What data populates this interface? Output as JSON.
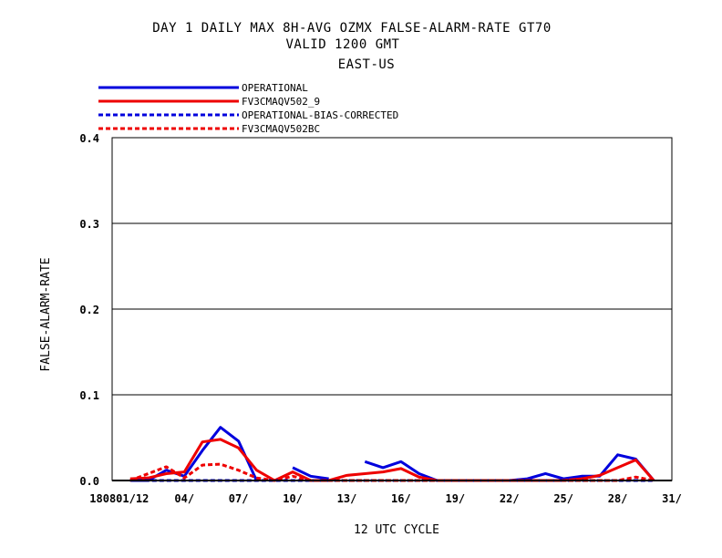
{
  "title_lines": [
    "DAY 1 DAILY MAX   8H-AVG OZMX FALSE-ALARM-RATE GT70",
    "VALID 1200 GMT",
    "EAST-US"
  ],
  "legend": [
    {
      "label": "OPERATIONAL",
      "color": "#0000dd",
      "dashed": false
    },
    {
      "label": "FV3CMAQV502_9",
      "color": "#ee0000",
      "dashed": false
    },
    {
      "label": "OPERATIONAL-BIAS-CORRECTED",
      "color": "#0000dd",
      "dashed": true
    },
    {
      "label": "FV3CMAQV502BC",
      "color": "#ee0000",
      "dashed": true
    }
  ],
  "chart_data": {
    "type": "line",
    "ylabel": "FALSE-ALARM-RATE",
    "xlabel": "12 UTC CYCLE",
    "ylim": [
      0,
      0.4
    ],
    "xlim": [
      0,
      31
    ],
    "y_ticks": [
      {
        "value": 0.0,
        "label": "0.0"
      },
      {
        "value": 0.1,
        "label": "0.1"
      },
      {
        "value": 0.2,
        "label": "0.2"
      },
      {
        "value": 0.3,
        "label": "0.3"
      },
      {
        "value": 0.4,
        "label": "0.4"
      }
    ],
    "x_ticks": [
      {
        "value": 1,
        "label": "180801/12"
      },
      {
        "value": 4,
        "label": "04/"
      },
      {
        "value": 7,
        "label": "07/"
      },
      {
        "value": 10,
        "label": "10/"
      },
      {
        "value": 13,
        "label": "13/"
      },
      {
        "value": 16,
        "label": "16/"
      },
      {
        "value": 19,
        "label": "19/"
      },
      {
        "value": 22,
        "label": "22/"
      },
      {
        "value": 25,
        "label": "25/"
      },
      {
        "value": 28,
        "label": "28/"
      },
      {
        "value": 31,
        "label": "31/"
      }
    ],
    "gridlines_y": [
      0.1,
      0.2,
      0.3
    ],
    "x": [
      1,
      2,
      3,
      4,
      5,
      6,
      7,
      8,
      9,
      10,
      11,
      12,
      13,
      14,
      15,
      16,
      17,
      18,
      19,
      20,
      21,
      22,
      23,
      24,
      25,
      26,
      27,
      28,
      29,
      30
    ],
    "series": [
      {
        "name": "OPERATIONAL",
        "values": [
          0,
          0,
          0.012,
          0.005,
          0.035,
          0.062,
          0.046,
          0.0,
          null,
          0.015,
          0.005,
          0.002,
          null,
          0.022,
          0.015,
          0.022,
          0.008,
          0.0,
          0.0,
          0.0,
          0.0,
          0.0,
          0.002,
          0.008,
          0.002,
          0.005,
          0.005,
          0.03,
          0.025,
          0.0
        ]
      },
      {
        "name": "FV3CMAQV502_9",
        "values": [
          0.002,
          0.003,
          0.008,
          0.01,
          0.045,
          0.048,
          0.038,
          0.012,
          0.0,
          0.01,
          0.0,
          0.0,
          0.006,
          0.008,
          0.01,
          0.014,
          0.004,
          0.0,
          0.0,
          0.0,
          0.0,
          0.0,
          0.0,
          0.0,
          0.0,
          0.002,
          0.006,
          0.015,
          0.024,
          0.0
        ]
      },
      {
        "name": "OPERATIONAL-BIAS-CORRECTED",
        "values": [
          0,
          0,
          0,
          0,
          0,
          0,
          0,
          0,
          0,
          0,
          0,
          0,
          0,
          0,
          0,
          0,
          0,
          0,
          0,
          0,
          0,
          0,
          0,
          0,
          0,
          0,
          0,
          0,
          0,
          0
        ]
      },
      {
        "name": "FV3CMAQV502BC",
        "values": [
          0.0,
          0.008,
          0.016,
          0.003,
          0.018,
          0.019,
          0.012,
          0.003,
          0.0,
          0.005,
          0.0,
          0.0,
          0.0,
          0.0,
          0.0,
          0.0,
          0.0,
          0.0,
          0.0,
          0.0,
          0.0,
          0.0,
          0.0,
          0.0,
          0.0,
          0.0,
          0.0,
          0.0,
          0.004,
          0.0
        ]
      }
    ]
  }
}
